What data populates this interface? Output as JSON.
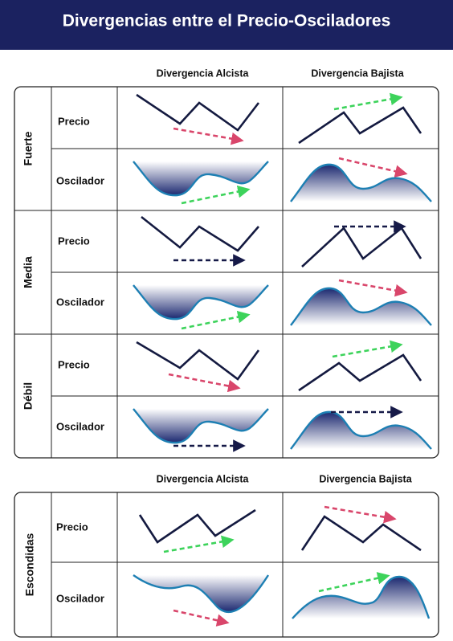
{
  "title": "Divergencias entre el Precio-Osciladores",
  "sections": [
    {
      "columns": [
        "Divergencia Alcista",
        "Divergencia Bajista"
      ],
      "groups": [
        {
          "label": "Fuerte",
          "rows": [
            "Precio",
            "Oscilador"
          ]
        },
        {
          "label": "Media",
          "rows": [
            "Precio",
            "Oscilador"
          ]
        },
        {
          "label": "Débil",
          "rows": [
            "Precio",
            "Oscilador"
          ]
        }
      ]
    },
    {
      "columns": [
        "Divergencia Alcista",
        "Divergencia Bajista"
      ],
      "groups": [
        {
          "label": "Escondidas",
          "rows": [
            "Precio",
            "Oscilador"
          ]
        }
      ]
    }
  ]
}
